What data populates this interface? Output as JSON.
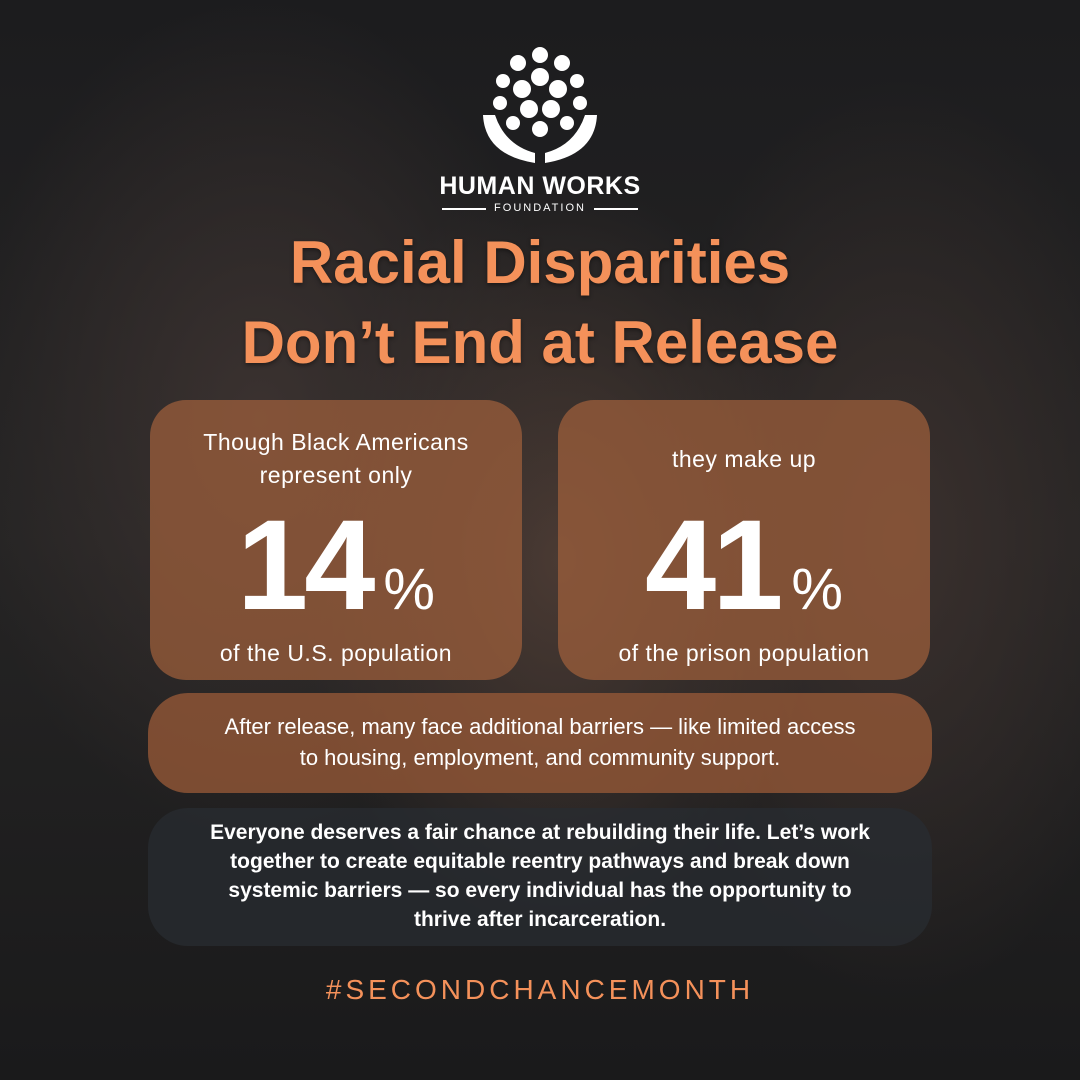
{
  "logo": {
    "name": "HUMAN WORKS",
    "subtitle": "FOUNDATION"
  },
  "title": {
    "line1": "Racial Disparities",
    "line2": "Don’t End at Release"
  },
  "stats": [
    {
      "intro": "Though Black Americans represent only",
      "number": "14",
      "unit": "%",
      "caption": "of the U.S. population"
    },
    {
      "intro": "they make up",
      "number": "41",
      "unit": "%",
      "caption": "of the prison population"
    }
  ],
  "barriers": "After release, many face additional barriers — like limited access to housing, employment, and community support.",
  "call_to_action": "Everyone deserves a fair chance at rebuilding their life. Let’s work together to create equitable reentry pathways and break down systemic barriers — so every individual has the opportunity to thrive after incarceration.",
  "hashtag": "#SECONDCHANCEMONTH"
}
